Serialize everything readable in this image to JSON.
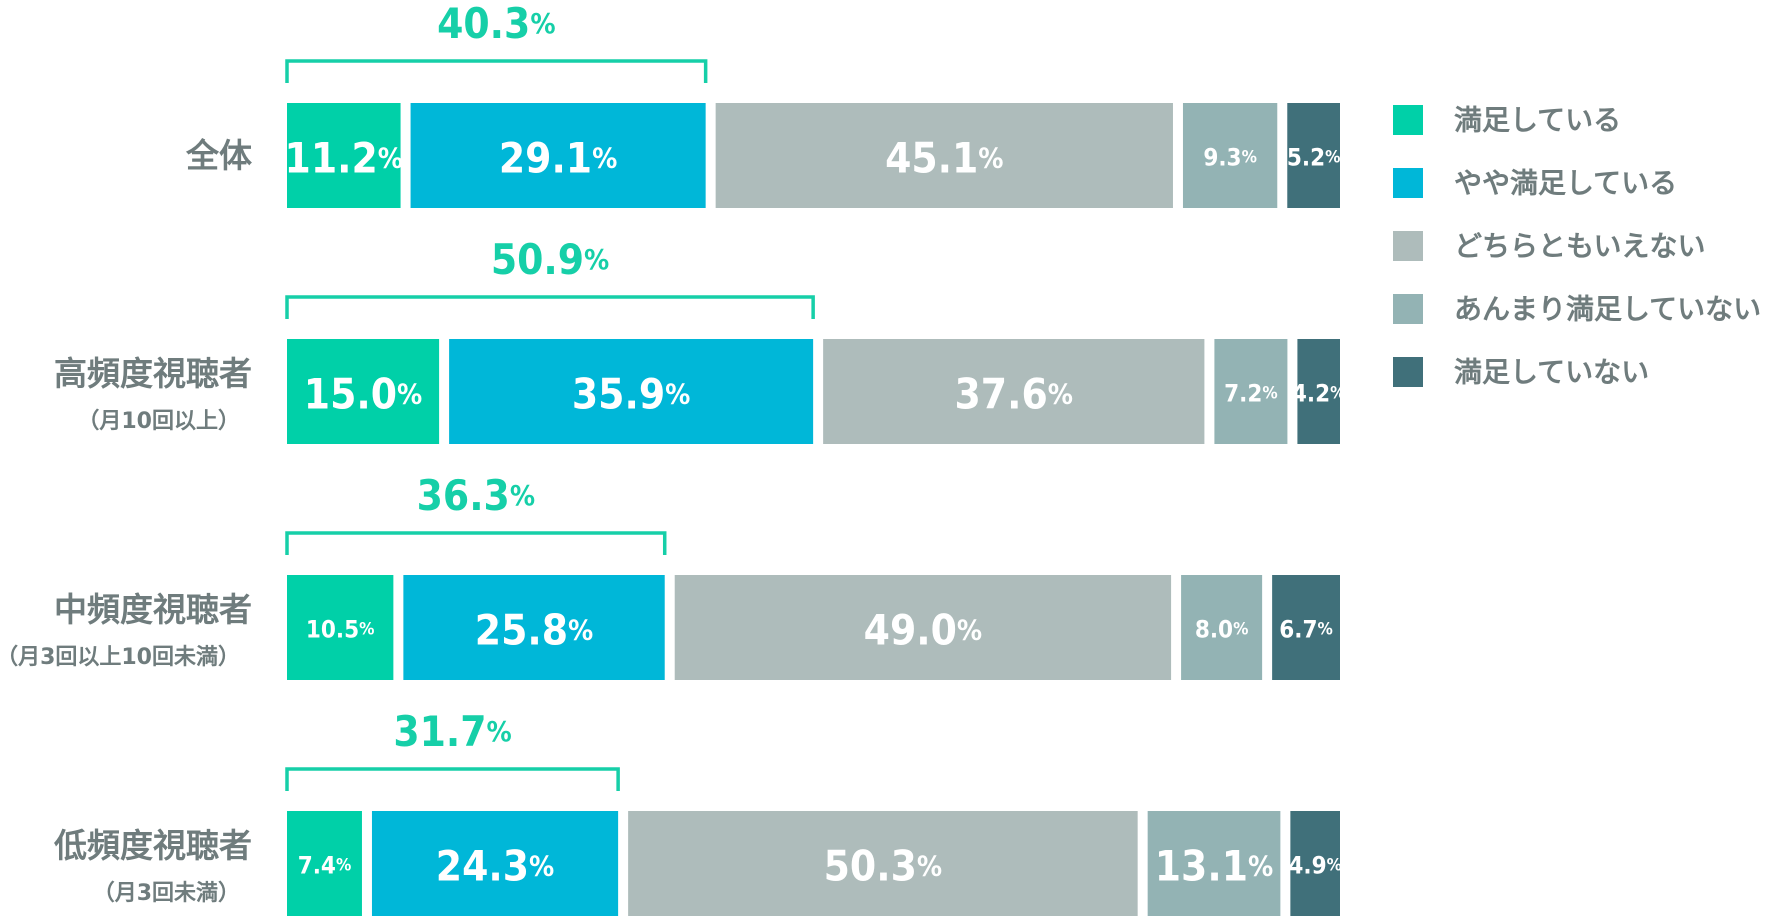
{
  "chart_data": {
    "type": "bar",
    "orientation": "horizontal",
    "stacked": true,
    "xlim": [
      0,
      100
    ],
    "unit": "%",
    "categories": [
      {
        "name": "全体",
        "sub": ""
      },
      {
        "name": "高頻度視聴者",
        "sub": "（月10回以上）"
      },
      {
        "name": "中頻度視聴者",
        "sub": "（月3回以上10回未満）"
      },
      {
        "name": "低頻度視聴者",
        "sub": "（月3回未満）"
      }
    ],
    "series": [
      {
        "name": "満足している",
        "color": "#00d0a8",
        "values": [
          11.2,
          15.0,
          10.5,
          7.4
        ]
      },
      {
        "name": "やや満足している",
        "color": "#00b7d8",
        "values": [
          29.1,
          35.9,
          25.8,
          24.3
        ]
      },
      {
        "name": "どちらともいえない",
        "color": "#aebcbb",
        "values": [
          45.1,
          37.6,
          49.0,
          50.3
        ]
      },
      {
        "name": "あんまり満足していない",
        "color": "#93b3b4",
        "values": [
          9.3,
          7.2,
          8.0,
          13.1
        ]
      },
      {
        "name": "満足していない",
        "color": "#40707a",
        "values": [
          5.2,
          4.2,
          6.7,
          4.9
        ]
      }
    ],
    "brackets": [
      40.3,
      50.9,
      36.3,
      31.7
    ],
    "bracket_color": "#16cfa8",
    "legend_position": "right"
  }
}
